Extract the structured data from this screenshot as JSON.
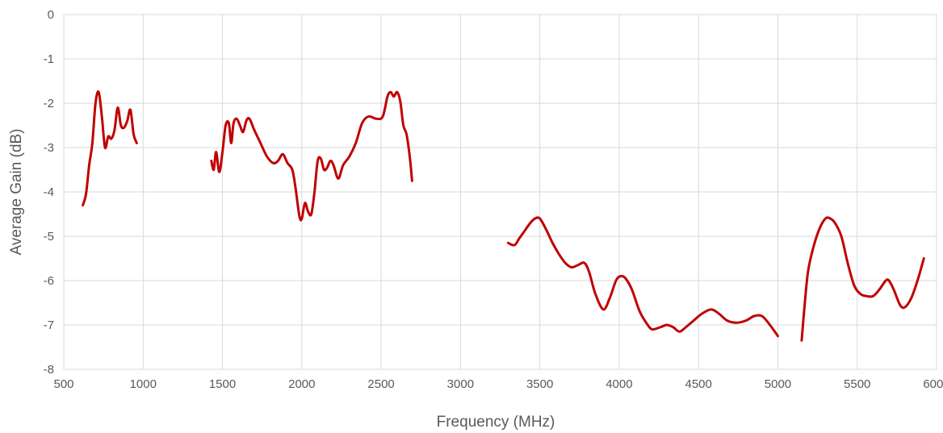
{
  "chart_data": {
    "type": "line",
    "title": "",
    "xlabel": "Frequency (MHz)",
    "ylabel": "Average Gain (dB)",
    "xlim": [
      500,
      6000
    ],
    "ylim": [
      -8,
      0
    ],
    "xticks": [
      500,
      1000,
      1500,
      2000,
      2500,
      3000,
      3500,
      4000,
      4500,
      5000,
      5500,
      6000
    ],
    "yticks": [
      0,
      -1,
      -2,
      -3,
      -4,
      -5,
      -6,
      -7,
      -8
    ],
    "grid": true,
    "legend": "none",
    "color": "#c00000",
    "series": [
      {
        "segments": [
          [
            [
              620,
              -4.3
            ],
            [
              640,
              -4.05
            ],
            [
              660,
              -3.4
            ],
            [
              680,
              -2.9
            ],
            [
              700,
              -2.0
            ],
            [
              720,
              -1.75
            ],
            [
              740,
              -2.3
            ],
            [
              760,
              -3.0
            ],
            [
              780,
              -2.75
            ],
            [
              800,
              -2.8
            ],
            [
              820,
              -2.6
            ],
            [
              840,
              -2.1
            ],
            [
              860,
              -2.5
            ],
            [
              880,
              -2.55
            ],
            [
              900,
              -2.4
            ],
            [
              920,
              -2.15
            ],
            [
              940,
              -2.7
            ],
            [
              960,
              -2.9
            ]
          ],
          [
            [
              1430,
              -3.3
            ],
            [
              1445,
              -3.5
            ],
            [
              1460,
              -3.1
            ],
            [
              1480,
              -3.55
            ],
            [
              1500,
              -3.1
            ],
            [
              1520,
              -2.5
            ],
            [
              1540,
              -2.45
            ],
            [
              1555,
              -2.9
            ],
            [
              1570,
              -2.45
            ],
            [
              1590,
              -2.35
            ],
            [
              1610,
              -2.5
            ],
            [
              1630,
              -2.65
            ],
            [
              1650,
              -2.4
            ],
            [
              1670,
              -2.35
            ],
            [
              1700,
              -2.6
            ],
            [
              1740,
              -2.9
            ],
            [
              1780,
              -3.2
            ],
            [
              1820,
              -3.35
            ],
            [
              1850,
              -3.3
            ],
            [
              1880,
              -3.15
            ],
            [
              1910,
              -3.35
            ],
            [
              1940,
              -3.5
            ],
            [
              1960,
              -3.9
            ],
            [
              1985,
              -4.55
            ],
            [
              2000,
              -4.6
            ],
            [
              2020,
              -4.25
            ],
            [
              2040,
              -4.45
            ],
            [
              2060,
              -4.5
            ],
            [
              2080,
              -4.0
            ],
            [
              2100,
              -3.3
            ],
            [
              2120,
              -3.25
            ],
            [
              2140,
              -3.5
            ],
            [
              2160,
              -3.45
            ],
            [
              2180,
              -3.3
            ],
            [
              2200,
              -3.4
            ],
            [
              2230,
              -3.7
            ],
            [
              2260,
              -3.4
            ],
            [
              2300,
              -3.2
            ],
            [
              2340,
              -2.9
            ],
            [
              2380,
              -2.45
            ],
            [
              2420,
              -2.3
            ],
            [
              2470,
              -2.35
            ],
            [
              2510,
              -2.3
            ],
            [
              2540,
              -1.85
            ],
            [
              2560,
              -1.75
            ],
            [
              2580,
              -1.85
            ],
            [
              2600,
              -1.75
            ],
            [
              2620,
              -1.95
            ],
            [
              2640,
              -2.5
            ],
            [
              2660,
              -2.7
            ],
            [
              2680,
              -3.2
            ],
            [
              2695,
              -3.75
            ]
          ],
          [
            [
              3300,
              -5.15
            ],
            [
              3340,
              -5.2
            ],
            [
              3370,
              -5.05
            ],
            [
              3400,
              -4.9
            ],
            [
              3440,
              -4.7
            ],
            [
              3470,
              -4.6
            ],
            [
              3500,
              -4.6
            ],
            [
              3540,
              -4.85
            ],
            [
              3580,
              -5.15
            ],
            [
              3620,
              -5.4
            ],
            [
              3660,
              -5.6
            ],
            [
              3700,
              -5.7
            ],
            [
              3740,
              -5.65
            ],
            [
              3780,
              -5.6
            ],
            [
              3810,
              -5.8
            ],
            [
              3850,
              -6.3
            ],
            [
              3900,
              -6.65
            ],
            [
              3940,
              -6.4
            ],
            [
              3980,
              -6.0
            ],
            [
              4010,
              -5.9
            ],
            [
              4040,
              -5.95
            ],
            [
              4080,
              -6.2
            ],
            [
              4130,
              -6.7
            ],
            [
              4180,
              -7.0
            ],
            [
              4210,
              -7.1
            ],
            [
              4260,
              -7.05
            ],
            [
              4300,
              -7.0
            ],
            [
              4340,
              -7.05
            ],
            [
              4380,
              -7.15
            ],
            [
              4420,
              -7.05
            ],
            [
              4470,
              -6.9
            ],
            [
              4520,
              -6.75
            ],
            [
              4580,
              -6.65
            ],
            [
              4630,
              -6.75
            ],
            [
              4680,
              -6.9
            ],
            [
              4740,
              -6.95
            ],
            [
              4800,
              -6.9
            ],
            [
              4850,
              -6.8
            ],
            [
              4900,
              -6.8
            ],
            [
              4950,
              -7.0
            ],
            [
              5000,
              -7.25
            ]
          ],
          [
            [
              5150,
              -7.35
            ],
            [
              5170,
              -6.5
            ],
            [
              5190,
              -5.8
            ],
            [
              5220,
              -5.3
            ],
            [
              5260,
              -4.85
            ],
            [
              5300,
              -4.6
            ],
            [
              5330,
              -4.6
            ],
            [
              5360,
              -4.7
            ],
            [
              5400,
              -5.0
            ],
            [
              5440,
              -5.6
            ],
            [
              5480,
              -6.1
            ],
            [
              5520,
              -6.3
            ],
            [
              5560,
              -6.35
            ],
            [
              5600,
              -6.35
            ],
            [
              5640,
              -6.2
            ],
            [
              5680,
              -6.0
            ],
            [
              5700,
              -6.0
            ],
            [
              5730,
              -6.2
            ],
            [
              5770,
              -6.55
            ],
            [
              5800,
              -6.6
            ],
            [
              5840,
              -6.4
            ],
            [
              5880,
              -6.0
            ],
            [
              5920,
              -5.5
            ]
          ]
        ]
      }
    ]
  }
}
